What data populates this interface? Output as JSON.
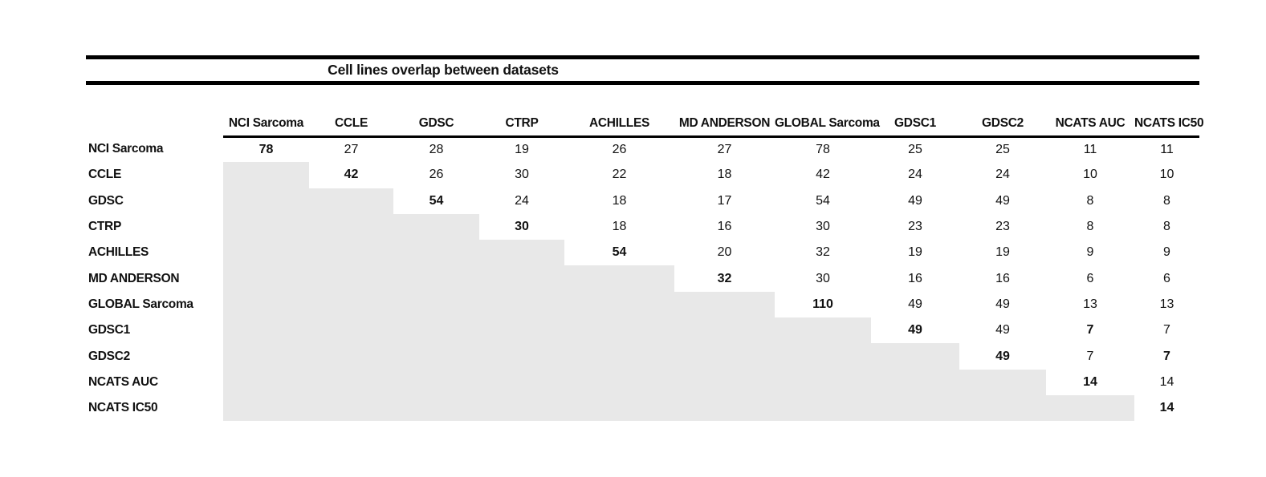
{
  "title": "Cell lines overlap between datasets",
  "colors": {
    "shaded_cell": "#e8e8e8",
    "rule": "#000000",
    "text": "#111111"
  },
  "table": {
    "corner_label": "",
    "columns": [
      "NCI Sarcoma",
      "CCLE",
      "GDSC",
      "CTRP",
      "ACHILLES",
      "MD ANDERSON",
      "GLOBAL Sarcoma",
      "GDSC1",
      "GDSC2",
      "NCATS AUC",
      "NCATS IC50"
    ],
    "rows": [
      {
        "label": "NCI Sarcoma",
        "values": [
          78,
          27,
          28,
          19,
          26,
          27,
          78,
          25,
          25,
          11,
          11
        ]
      },
      {
        "label": "CCLE",
        "values": [
          null,
          42,
          26,
          30,
          22,
          18,
          42,
          24,
          24,
          10,
          10
        ]
      },
      {
        "label": "GDSC",
        "values": [
          null,
          null,
          54,
          24,
          18,
          17,
          54,
          49,
          49,
          8,
          8
        ]
      },
      {
        "label": "CTRP",
        "values": [
          null,
          null,
          null,
          30,
          18,
          16,
          30,
          23,
          23,
          8,
          8
        ]
      },
      {
        "label": "ACHILLES",
        "values": [
          null,
          null,
          null,
          null,
          54,
          20,
          32,
          19,
          19,
          9,
          9
        ]
      },
      {
        "label": "MD ANDERSON",
        "values": [
          null,
          null,
          null,
          null,
          null,
          32,
          30,
          16,
          16,
          6,
          6
        ]
      },
      {
        "label": "GLOBAL Sarcoma",
        "values": [
          null,
          null,
          null,
          null,
          null,
          null,
          110,
          49,
          49,
          13,
          13
        ]
      },
      {
        "label": "GDSC1",
        "values": [
          null,
          null,
          null,
          null,
          null,
          null,
          null,
          49,
          49,
          7,
          7
        ]
      },
      {
        "label": "GDSC2",
        "values": [
          null,
          null,
          null,
          null,
          null,
          null,
          null,
          null,
          49,
          7,
          7
        ]
      },
      {
        "label": "NCATS AUC",
        "values": [
          null,
          null,
          null,
          null,
          null,
          null,
          null,
          null,
          null,
          14,
          14
        ]
      },
      {
        "label": "NCATS IC50",
        "values": [
          null,
          null,
          null,
          null,
          null,
          null,
          null,
          null,
          null,
          null,
          14
        ]
      }
    ],
    "bold_cells": [
      [
        0,
        0
      ],
      [
        1,
        1
      ],
      [
        2,
        2
      ],
      [
        3,
        3
      ],
      [
        4,
        4
      ],
      [
        5,
        5
      ],
      [
        6,
        6
      ],
      [
        7,
        7
      ],
      [
        8,
        8
      ],
      [
        9,
        9
      ],
      [
        10,
        10
      ],
      [
        7,
        9
      ],
      [
        8,
        10
      ]
    ]
  }
}
